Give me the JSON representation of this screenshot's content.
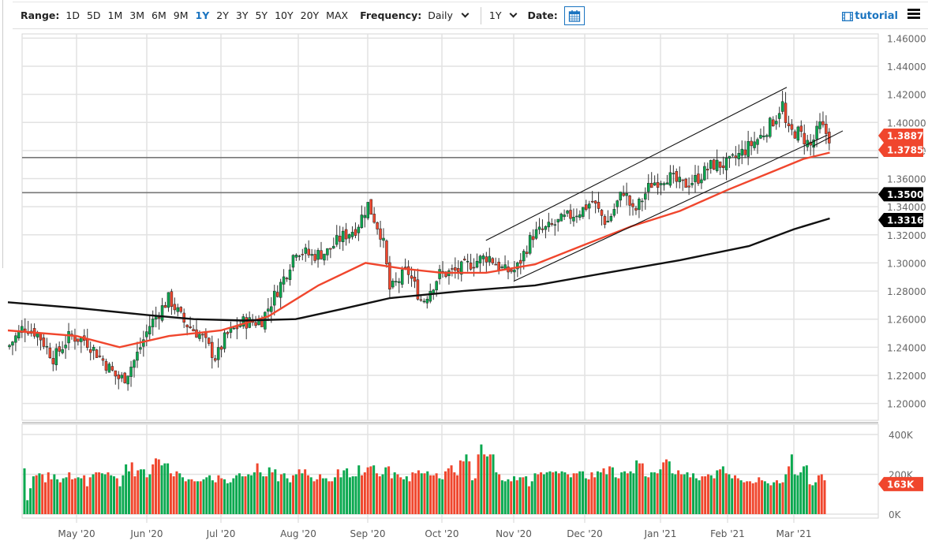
{
  "toolbar": {
    "range_label": "Range:",
    "ranges": [
      "1D",
      "5D",
      "1M",
      "3M",
      "6M",
      "9M",
      "1Y",
      "2Y",
      "3Y",
      "5Y",
      "10Y",
      "20Y",
      "MAX"
    ],
    "active_range": "1Y",
    "frequency_label": "Frequency:",
    "frequency_value": "Daily",
    "period_value": "1Y",
    "date_label": "Date:",
    "tutorial_label": "tutorial",
    "icons": {
      "calendar": "calendar-icon",
      "tutorial": "film-icon",
      "menu": "hamburger-menu-icon"
    }
  },
  "colors": {
    "up": "#0aa84f",
    "down": "#f0462d",
    "ma_fast": "#f0462d",
    "ma_slow": "#111111",
    "accent": "#1a74c0",
    "grid": "#e2e2e2",
    "hline": "#777777"
  },
  "chart_data": {
    "type": "candlestick",
    "title": "",
    "xlabel": "",
    "ylabel": "",
    "price_axis": {
      "ticks": [
        "1.46000",
        "1.44000",
        "1.42000",
        "1.40000",
        "1.38000",
        "1.36000",
        "1.34000",
        "1.32000",
        "1.30000",
        "1.28000",
        "1.26000",
        "1.24000",
        "1.22000",
        "1.20000"
      ],
      "ylim": [
        1.19,
        1.46
      ]
    },
    "x_ticks": [
      "May '20",
      "Jun '20",
      "Jul '20",
      "Aug '20",
      "Sep '20",
      "Oct '20",
      "Nov '20",
      "Dec '20",
      "Jan '21",
      "Feb '21",
      "Mar '21"
    ],
    "price_markers": [
      {
        "label": "1.38874",
        "value": 1.38874,
        "color": "#f0462d",
        "meaning": "last close"
      },
      {
        "label": "1.37853",
        "value": 1.37853,
        "color": "#f0462d",
        "meaning": "50-day MA"
      },
      {
        "label": "1.35000",
        "value": 1.35,
        "color": "#000000",
        "meaning": "horizontal line"
      },
      {
        "label": "1.33167",
        "value": 1.33167,
        "color": "#000000",
        "meaning": "200-day MA"
      }
    ],
    "horizontal_lines": [
      1.375,
      1.35
    ],
    "trend_channel": {
      "upper": [
        [
          "Oct 20 '20",
          1.316
        ],
        [
          "Feb 26 '21",
          1.425
        ]
      ],
      "lower": [
        [
          "Nov 1 '20",
          1.287
        ],
        [
          "Mar 15 '21",
          1.391
        ]
      ]
    },
    "close_path": [
      [
        "Apr 1 '20",
        1.24
      ],
      [
        "Apr 8 '20",
        1.255
      ],
      [
        "Apr 14 '20",
        1.25
      ],
      [
        "Apr 21 '20",
        1.232
      ],
      [
        "Apr 28 '20",
        1.248
      ],
      [
        "May 5 '20",
        1.245
      ],
      [
        "May 12 '20",
        1.232
      ],
      [
        "May 19 '20",
        1.218
      ],
      [
        "May 22 '20",
        1.218
      ],
      [
        "May 27 '20",
        1.232
      ],
      [
        "Jun 2 '20",
        1.255
      ],
      [
        "Jun 10 '20",
        1.275
      ],
      [
        "Jun 16 '20",
        1.258
      ],
      [
        "Jun 23 '20",
        1.248
      ],
      [
        "Jun 29 '20",
        1.232
      ],
      [
        "Jul 3 '20",
        1.248
      ],
      [
        "Jul 10 '20",
        1.258
      ],
      [
        "Jul 17 '20",
        1.258
      ],
      [
        "Jul 22 '20",
        1.275
      ],
      [
        "Jul 27 '20",
        1.292
      ],
      [
        "Jul 31 '20",
        1.31
      ],
      [
        "Aug 7 '20",
        1.305
      ],
      [
        "Aug 14 '20",
        1.308
      ],
      [
        "Aug 20 '20",
        1.318
      ],
      [
        "Aug 27 '20",
        1.325
      ],
      [
        "Sep 1 '20",
        1.342
      ],
      [
        "Sep 7 '20",
        1.318
      ],
      [
        "Sep 10 '20",
        1.28
      ],
      [
        "Sep 17 '20",
        1.295
      ],
      [
        "Sep 23 '20",
        1.272
      ],
      [
        "Sep 30 '20",
        1.292
      ],
      [
        "Oct 7 '20",
        1.294
      ],
      [
        "Oct 14 '20",
        1.3
      ],
      [
        "Oct 21 '20",
        1.305
      ],
      [
        "Oct 28 '20",
        1.294
      ],
      [
        "Nov 2 '20",
        1.295
      ],
      [
        "Nov 9 '20",
        1.32
      ],
      [
        "Nov 16 '20",
        1.325
      ],
      [
        "Nov 23 '20",
        1.332
      ],
      [
        "Nov 30 '20",
        1.338
      ],
      [
        "Dec 4 '20",
        1.344
      ],
      [
        "Dec 10 '20",
        1.328
      ],
      [
        "Dec 17 '20",
        1.352
      ],
      [
        "Dec 21 '20",
        1.335
      ],
      [
        "Dec 28 '20",
        1.356
      ],
      [
        "Jan 4 '21",
        1.362
      ],
      [
        "Jan 11 '21",
        1.355
      ],
      [
        "Jan 18 '21",
        1.36
      ],
      [
        "Jan 25 '21",
        1.37
      ],
      [
        "Feb 1 '21",
        1.37
      ],
      [
        "Feb 8 '21",
        1.38
      ],
      [
        "Feb 15 '21",
        1.39
      ],
      [
        "Feb 22 '21",
        1.405
      ],
      [
        "Feb 24 '21",
        1.415
      ],
      [
        "Feb 26 '21",
        1.393
      ],
      [
        "Mar 3 '21",
        1.393
      ],
      [
        "Mar 8 '21",
        1.383
      ],
      [
        "Mar 12 '21",
        1.398
      ],
      [
        "Mar 16 '21",
        1.389
      ]
    ],
    "series": [
      {
        "name": "50-day MA",
        "color": "#f0462d",
        "points": [
          [
            "Apr 1 '20",
            1.252
          ],
          [
            "May 1 '20",
            1.248
          ],
          [
            "May 20 '20",
            1.24
          ],
          [
            "Jun 10 '20",
            1.248
          ],
          [
            "Jul 1 '20",
            1.252
          ],
          [
            "Jul 20 '20",
            1.262
          ],
          [
            "Aug 10 '20",
            1.284
          ],
          [
            "Aug 31 '20",
            1.3
          ],
          [
            "Sep 15 '20",
            1.296
          ],
          [
            "Oct 1 '20",
            1.293
          ],
          [
            "Oct 20 '20",
            1.293
          ],
          [
            "Nov 10 '20",
            1.299
          ],
          [
            "Dec 1 '20",
            1.313
          ],
          [
            "Dec 20 '20",
            1.326
          ],
          [
            "Jan 10 '21",
            1.337
          ],
          [
            "Feb 1 '21",
            1.352
          ],
          [
            "Feb 20 '21",
            1.365
          ],
          [
            "Mar 5 '21",
            1.374
          ],
          [
            "Mar 16 '21",
            1.37853
          ]
        ]
      },
      {
        "name": "200-day MA",
        "color": "#111111",
        "points": [
          [
            "Apr 1 '20",
            1.272
          ],
          [
            "May 1 '20",
            1.268
          ],
          [
            "Jun 1 '20",
            1.263
          ],
          [
            "Jun 20 '20",
            1.26
          ],
          [
            "Jul 10 '20",
            1.259
          ],
          [
            "Jul 31 '20",
            1.26
          ],
          [
            "Aug 20 '20",
            1.267
          ],
          [
            "Sep 10 '20",
            1.275
          ],
          [
            "Oct 10 '20",
            1.28
          ],
          [
            "Nov 10 '20",
            1.284
          ],
          [
            "Dec 10 '20",
            1.293
          ],
          [
            "Jan 10 '21",
            1.302
          ],
          [
            "Feb 10 '21",
            1.312
          ],
          [
            "Mar 1 '21",
            1.324
          ],
          [
            "Mar 16 '21",
            1.33167
          ]
        ]
      }
    ],
    "volume": {
      "axis_ticks": [
        "400K",
        "200K",
        "0K"
      ],
      "ylim": [
        0,
        400000
      ],
      "last_label": "163K",
      "last_value": 163000,
      "approx_values_k": [
        230,
        70,
        130,
        190,
        195,
        205,
        200,
        160,
        210,
        175,
        200,
        175,
        160,
        180,
        185,
        210,
        175,
        180,
        185,
        180,
        195,
        140,
        185,
        200,
        210,
        210,
        205,
        200,
        210,
        195,
        190,
        180,
        140,
        195,
        250,
        215,
        260,
        190,
        220,
        225,
        225,
        185,
        200,
        250,
        280,
        275,
        245,
        255,
        255,
        205,
        190,
        215,
        205,
        185,
        165,
        175,
        175,
        165,
        165,
        165,
        175,
        185,
        195,
        170,
        160,
        195,
        180,
        175,
        155,
        160,
        180,
        195,
        205,
        190,
        190,
        200,
        195,
        210,
        255,
        210,
        190,
        190,
        235,
        210,
        225,
        165,
        200,
        205,
        180,
        160,
        195,
        200,
        225,
        205,
        225,
        195,
        185,
        165,
        175,
        200,
        180,
        180,
        165,
        165,
        185,
        225,
        185,
        220,
        230,
        185,
        190,
        190,
        245,
        195,
        210,
        235,
        240,
        245,
        205,
        190,
        200,
        235,
        240,
        180,
        210,
        200,
        185,
        175,
        190,
        165,
        210,
        205,
        220,
        205,
        205,
        215,
        195,
        195,
        205,
        180,
        175,
        215,
        230,
        245,
        210,
        195,
        270,
        265,
        300,
        265,
        170,
        180,
        300,
        350,
        300,
        290,
        300,
        300,
        210,
        200,
        170,
        165,
        175,
        165,
        190,
        170,
        185,
        185,
        190,
        140,
        165,
        205,
        200,
        210,
        200,
        210,
        215,
        210,
        215,
        205,
        215,
        210,
        200,
        185,
        205,
        205,
        215,
        215,
        180,
        175,
        210,
        185,
        215,
        210,
        230,
        200,
        240,
        235,
        185,
        180,
        210,
        215,
        205,
        215,
        205,
        270,
        255,
        255,
        190,
        185,
        210,
        210,
        205,
        225,
        260,
        275,
        265,
        205,
        200,
        220,
        200,
        200,
        210,
        185,
        205,
        180,
        170,
        190,
        190,
        200,
        195,
        180,
        220,
        225,
        240,
        205,
        200,
        180,
        195,
        180,
        170,
        160,
        165,
        165,
        155,
        160,
        185,
        170,
        165,
        155,
        145,
        160,
        170,
        155,
        160,
        200,
        240,
        300,
        200,
        195,
        210,
        240,
        245,
        150,
        145,
        160,
        195,
        200,
        170
      ]
    }
  }
}
